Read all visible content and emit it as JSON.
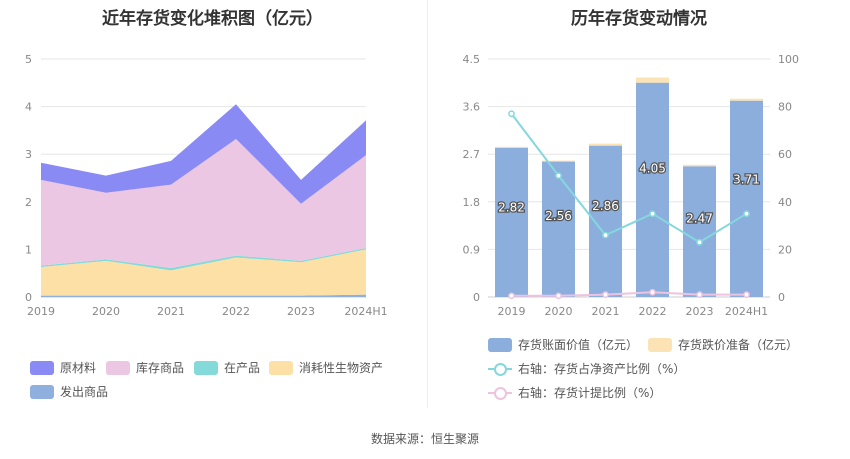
{
  "left_chart": {
    "title": "近年存货变化堆积图（亿元）",
    "chart_data": {
      "type": "area",
      "stacked": true,
      "categories": [
        "2019",
        "2020",
        "2021",
        "2022",
        "2023",
        "2024H1"
      ],
      "y_ticks": [
        "0",
        "1",
        "2",
        "3",
        "4",
        "5"
      ],
      "ylim": [
        0,
        5
      ],
      "series": [
        {
          "name": "原材料",
          "color": "#8a8af4",
          "values": [
            0.36,
            0.36,
            0.5,
            0.73,
            0.5,
            0.73
          ]
        },
        {
          "name": "库存商品",
          "color": "#ecc7e3",
          "values": [
            1.8,
            1.4,
            1.75,
            2.45,
            1.2,
            1.95
          ]
        },
        {
          "name": "在产品",
          "color": "#84d9d9",
          "values": [
            0.03,
            0.03,
            0.05,
            0.04,
            0.03,
            0.03
          ]
        },
        {
          "name": "消耗性生物资产",
          "color": "#fde0a6",
          "values": [
            0.6,
            0.73,
            0.53,
            0.8,
            0.7,
            0.95
          ]
        },
        {
          "name": "发出商品",
          "color": "#8fb0df",
          "values": [
            0.03,
            0.03,
            0.03,
            0.03,
            0.03,
            0.05
          ]
        }
      ]
    }
  },
  "right_chart": {
    "title": "历年存货变动情况",
    "chart_data": {
      "type": "bar",
      "categories": [
        "2019",
        "2020",
        "2021",
        "2022",
        "2023",
        "2024H1"
      ],
      "left_axis": {
        "ticks": [
          "0",
          "0.9",
          "1.8",
          "2.7",
          "3.6",
          "4.5"
        ],
        "ylim": [
          0,
          4.5
        ]
      },
      "right_axis": {
        "ticks": [
          "0",
          "20",
          "40",
          "60",
          "80",
          "100"
        ],
        "ylim": [
          0,
          100
        ]
      },
      "bars": [
        {
          "name": "存货账面价值（亿元）",
          "color": "#8caedd",
          "values": [
            2.82,
            2.56,
            2.86,
            4.05,
            2.47,
            3.71
          ],
          "labels": [
            "2.82",
            "2.56",
            "2.86",
            "4.05",
            "2.47",
            "3.71"
          ]
        },
        {
          "name": "存货跌价准备（亿元）",
          "color": "#fbe3b6",
          "values": [
            0.02,
            0.02,
            0.04,
            0.1,
            0.03,
            0.04
          ]
        }
      ],
      "lines": [
        {
          "name": "右轴：存货占净资产比例（%）",
          "color": "#84d8dd",
          "values": [
            77,
            51,
            26,
            35,
            23,
            35
          ]
        },
        {
          "name": "右轴：存货计提比例（%）",
          "color": "#eec3e0",
          "values": [
            0.5,
            0.5,
            1,
            2,
            1,
            1
          ]
        }
      ]
    }
  },
  "source_text": "数据来源：恒生聚源"
}
